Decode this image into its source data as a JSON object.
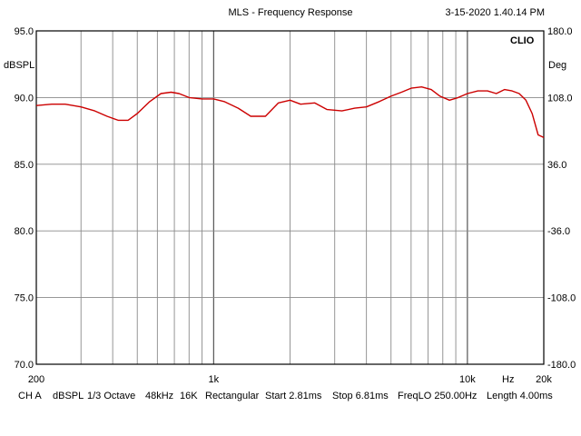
{
  "header": {
    "title": "MLS - Frequency Response",
    "timestamp": "3-15-2020 1.40.14 PM",
    "brand": "CLIO"
  },
  "footer": {
    "items": [
      "CH A",
      "dBSPL",
      "1/3 Octave",
      "48kHz",
      "16K",
      "Rectangular",
      "Start 2.81ms",
      "Stop 6.81ms",
      "FreqLO 250.00Hz",
      "Length 4.00ms"
    ]
  },
  "chart_data": {
    "type": "line",
    "title": "MLS - Frequency Response",
    "xscale": "log",
    "xlim": [
      200,
      20000
    ],
    "ylim": [
      70,
      95
    ],
    "ylabel": "dBSPL",
    "y2label": "Deg",
    "y2lim": [
      -180,
      180
    ],
    "x_ticks": [
      {
        "value": 200,
        "label": "200"
      },
      {
        "value": 1000,
        "label": "1k"
      },
      {
        "value": 10000,
        "label": "10k"
      },
      {
        "value": 20000,
        "label": "20k"
      }
    ],
    "x_unit_label": "Hz",
    "y_ticks": [
      "95.0",
      "90.0",
      "85.0",
      "80.0",
      "75.0",
      "70.0"
    ],
    "y2_ticks": [
      "180.0",
      "108.0",
      "36.0",
      "-36.0",
      "-108.0",
      "-180.0"
    ],
    "grid": true,
    "line_color": "#cc0000",
    "series": [
      {
        "x": [
          200,
          230,
          260,
          300,
          340,
          380,
          420,
          460,
          500,
          560,
          620,
          680,
          730,
          800,
          900,
          1000,
          1100,
          1250,
          1400,
          1600,
          1800,
          2000,
          2200,
          2500,
          2800,
          3200,
          3600,
          4000,
          4500,
          5000,
          5500,
          6000,
          6600,
          7200,
          7800,
          8500,
          9200,
          10000,
          11000,
          12000,
          13000,
          14000,
          15000,
          16000,
          17000,
          18000,
          19000,
          20000
        ],
        "y": [
          89.4,
          89.5,
          89.5,
          89.3,
          89.0,
          88.6,
          88.3,
          88.3,
          88.8,
          89.7,
          90.3,
          90.4,
          90.3,
          90.0,
          89.9,
          89.9,
          89.7,
          89.2,
          88.6,
          88.6,
          89.6,
          89.8,
          89.5,
          89.6,
          89.1,
          89.0,
          89.2,
          89.3,
          89.7,
          90.1,
          90.4,
          90.7,
          90.8,
          90.6,
          90.1,
          89.8,
          90.0,
          90.3,
          90.5,
          90.5,
          90.3,
          90.6,
          90.5,
          90.3,
          89.8,
          88.8,
          87.2,
          87.0
        ]
      }
    ]
  }
}
